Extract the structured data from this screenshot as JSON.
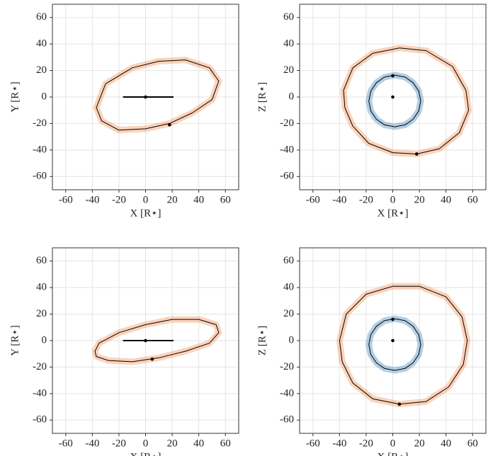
{
  "chart_data": [
    {
      "type": "line",
      "xlabel": "X [R⋆]",
      "ylabel": "Y [R⋆]",
      "xlim": [
        -70,
        70
      ],
      "ylim": [
        -70,
        70
      ],
      "xticks": [
        -60,
        -40,
        -20,
        0,
        20,
        40,
        60
      ],
      "yticks": [
        -60,
        -40,
        -20,
        0,
        20,
        40,
        60
      ],
      "grid": true,
      "series": [
        {
          "color": "#f4813a",
          "closed": true,
          "x": [
            -37,
            -30,
            -10,
            10,
            30,
            48,
            55,
            50,
            35,
            18,
            0,
            -20,
            -33
          ],
          "values": [
            -8,
            10,
            22,
            27,
            28,
            22,
            12,
            -2,
            -12,
            -20,
            -24,
            -25,
            -18
          ]
        },
        {
          "color": "#000000",
          "closed": false,
          "x": [
            -17,
            21
          ],
          "values": [
            0,
            0
          ]
        }
      ],
      "markers": {
        "color": "#000000",
        "x": [
          0,
          18
        ],
        "values": [
          0,
          -21
        ]
      }
    },
    {
      "type": "line",
      "xlabel": "X [R⋆]",
      "ylabel": "Z [R⋆]",
      "xlim": [
        -70,
        70
      ],
      "ylim": [
        -70,
        70
      ],
      "xticks": [
        -60,
        -40,
        -20,
        0,
        20,
        40,
        60
      ],
      "yticks": [
        -60,
        -40,
        -20,
        0,
        20,
        40,
        60
      ],
      "grid": true,
      "series": [
        {
          "color": "#f4813a",
          "closed": true,
          "x": [
            -37,
            -30,
            -15,
            5,
            25,
            45,
            55,
            57,
            50,
            35,
            18,
            0,
            -18,
            -30,
            -36
          ],
          "values": [
            5,
            22,
            33,
            37,
            35,
            23,
            5,
            -10,
            -27,
            -39,
            -43,
            -42,
            -35,
            -22,
            -8
          ]
        },
        {
          "color": "#2a72b0",
          "closed": true,
          "x": [
            21,
            19.5,
            15.3,
            9.3,
            1.5,
            -6.3,
            -12.3,
            -16.5,
            -18,
            -16.5,
            -12.3,
            -6.3,
            1.5,
            9.3,
            15.3,
            19.5
          ],
          "values": [
            -3,
            4.5,
            10.8,
            15,
            16.5,
            15,
            10.8,
            4.5,
            -3,
            -10.5,
            -16.8,
            -21,
            -22.5,
            -21,
            -16.8,
            -10.5
          ]
        }
      ],
      "markers": {
        "color": "#000000",
        "x": [
          0,
          0,
          18
        ],
        "values": [
          0,
          16,
          -43
        ]
      }
    },
    {
      "type": "line",
      "xlabel": "X [R⋆]",
      "ylabel": "Y [R⋆]",
      "xlim": [
        -70,
        70
      ],
      "ylim": [
        -70,
        70
      ],
      "xticks": [
        -60,
        -40,
        -20,
        0,
        20,
        40,
        60
      ],
      "yticks": [
        -60,
        -40,
        -20,
        0,
        20,
        40,
        60
      ],
      "grid": true,
      "series": [
        {
          "color": "#f4813a",
          "closed": true,
          "x": [
            -38,
            -35,
            -20,
            0,
            20,
            40,
            53,
            55,
            48,
            30,
            10,
            -10,
            -28,
            -37
          ],
          "values": [
            -8,
            -2,
            6,
            12,
            16,
            16,
            12,
            6,
            -2,
            -8,
            -13,
            -16,
            -15,
            -12
          ]
        },
        {
          "color": "#000000",
          "closed": false,
          "x": [
            -17,
            21
          ],
          "values": [
            0,
            0
          ]
        }
      ],
      "markers": {
        "color": "#000000",
        "x": [
          0,
          5
        ],
        "values": [
          0,
          -14
        ]
      }
    },
    {
      "type": "line",
      "xlabel": "X [R⋆]",
      "ylabel": "Z [R⋆]",
      "xlim": [
        -70,
        70
      ],
      "ylim": [
        -70,
        70
      ],
      "xticks": [
        -60,
        -40,
        -20,
        0,
        20,
        40,
        60
      ],
      "yticks": [
        -60,
        -40,
        -20,
        0,
        20,
        40,
        60
      ],
      "grid": true,
      "series": [
        {
          "color": "#f4813a",
          "closed": true,
          "x": [
            -40,
            -35,
            -20,
            0,
            20,
            40,
            52,
            56,
            53,
            42,
            25,
            5,
            -15,
            -30,
            -38
          ],
          "values": [
            0,
            20,
            35,
            41,
            41,
            33,
            18,
            0,
            -18,
            -35,
            -46,
            -48,
            -44,
            -32,
            -16
          ]
        },
        {
          "color": "#2a72b0",
          "closed": true,
          "x": [
            21,
            19.5,
            15.3,
            9.3,
            1.5,
            -6.3,
            -12.3,
            -16.5,
            -18,
            -16.5,
            -12.3,
            -6.3,
            1.5,
            9.3,
            15.3,
            19.5
          ],
          "values": [
            -3,
            4.5,
            10.8,
            15,
            16.5,
            15,
            10.8,
            4.5,
            -3,
            -10.5,
            -16.8,
            -21,
            -22.5,
            -21,
            -16.8,
            -10.5
          ]
        }
      ],
      "markers": {
        "color": "#000000",
        "x": [
          0,
          0,
          5
        ],
        "values": [
          0,
          16,
          -48
        ]
      }
    }
  ]
}
